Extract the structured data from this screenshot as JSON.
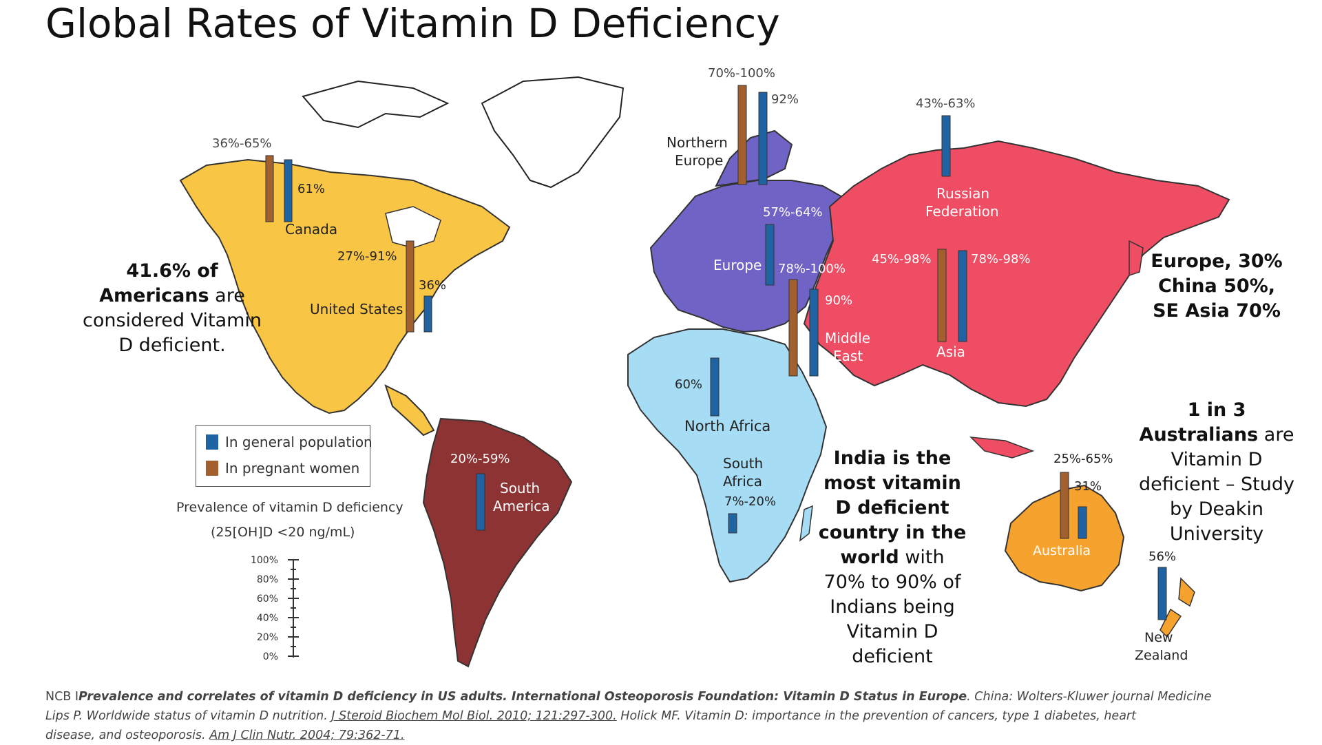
{
  "title": "Global Rates of Vitamin D Deficiency",
  "colors": {
    "north_america": "#f9c545",
    "south_america": "#8e3333",
    "europe": "#6f63c6",
    "africa": "#a7dcf5",
    "asia": "#ef4d64",
    "australia": "#f6a22f",
    "general_bar": "#1f63a3",
    "pregnant_bar": "#a2602f"
  },
  "regions": {
    "canada": "Canada",
    "united_states": "United States",
    "south_america": [
      "South",
      "America"
    ],
    "northern_europe": [
      "Northern",
      "Europe"
    ],
    "europe": "Europe",
    "russian_federation": [
      "Russian",
      "Federation"
    ],
    "middle_east": [
      "Middle",
      "East"
    ],
    "asia": "Asia",
    "north_africa": "North Africa",
    "south_africa": [
      "South",
      "Africa"
    ],
    "australia": "Australia",
    "new_zealand": [
      "New",
      "Zealand"
    ]
  },
  "values": {
    "canada_pregnant": "36%-65%",
    "canada_general": "61%",
    "us_pregnant": "27%-91%",
    "us_general": "36%",
    "south_america_general": "20%-59%",
    "northern_europe_pregnant": "70%-100%",
    "northern_europe_general": "92%",
    "europe_general": "57%-64%",
    "russia_general": "43%-63%",
    "middle_east_pregnant": "78%-100%",
    "middle_east_general": "90%",
    "asia_pregnant": "45%-98%",
    "asia_general": "78%-98%",
    "north_africa_general": "60%",
    "south_africa_general": "7%-20%",
    "australia_pregnant": "25%-65%",
    "australia_general": "31%",
    "new_zealand_general": "56%"
  },
  "legend": {
    "general": "In general population",
    "pregnant": "In pregnant women",
    "prevalence_line1": "Prevalence of vitamin D deficiency",
    "prevalence_line2": "(25[OH]D <20 ng/mL)",
    "scale": [
      "100%",
      "80%",
      "60%",
      "40%",
      "20%",
      "0%"
    ]
  },
  "callouts": {
    "americans": {
      "bold1": "41.6% of",
      "bold2": "Americans",
      "rest2": " are",
      "line3": "considered Vitamin",
      "line4": "D deficient."
    },
    "europe_china": [
      "Europe, 30%",
      "China 50%,",
      "SE Asia 70%"
    ],
    "australians": {
      "bold1": "1 in 3",
      "bold2": "Australians",
      "rest2": " are",
      "line3": "Vitamin D",
      "line4": "deficient – Study",
      "line5": "by Deakin",
      "line6": "University"
    },
    "india": {
      "b1": "India is the",
      "b2": "most vitamin",
      "b3": "D deficient",
      "b4": "country in the",
      "b5": "world",
      "r5": "  with",
      "l6": "70% to 90% of",
      "l7": "Indians being",
      "l8": "Vitamin D",
      "l9": "deficient"
    }
  },
  "citation": {
    "l1_a": "NCB I",
    "l1_b": "Prevalence and correlates of vitamin D deficiency in US adults.  International Osteoporosis Foundation: Vitamin D Status in Europe",
    "l1_c": ".  China: Wolters-Kluwer journal Medicine",
    "l2_a": "Lips P. Worldwide status of vitamin D nutrition. ",
    "l2_b": "J Steroid Biochem Mol Biol. 2010; 121:297-300.",
    "l2_c": "  Holick MF. Vitamin D: importance in the prevention of cancers, type 1 diabetes, heart",
    "l3_a": "disease, and osteoporosis. ",
    "l3_b": "Am J Clin Nutr. 2004; 79:362-71."
  }
}
